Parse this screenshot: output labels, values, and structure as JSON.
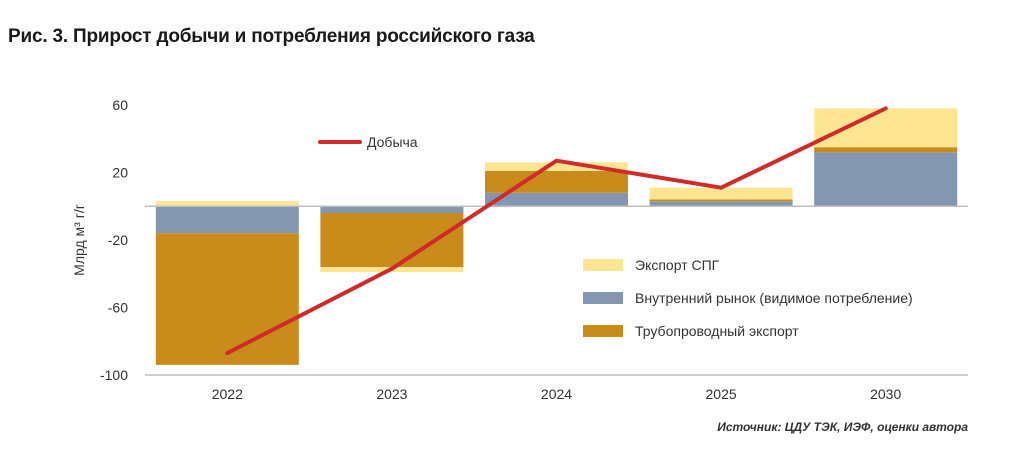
{
  "title": "Рис. 3. Прирост добычи и потребления российского газа",
  "source": "Источник: ЦДУ ТЭК, ИЭФ, оценки автора",
  "chart_data": {
    "type": "bar",
    "stacked": true,
    "categories": [
      "2022",
      "2023",
      "2024",
      "2025",
      "2030"
    ],
    "ylabel": "Млрд м³ г/г",
    "ylim": [
      -100,
      60
    ],
    "yticks": [
      60,
      20,
      -20,
      -60,
      -100
    ],
    "grid": false,
    "series": [
      {
        "name": "Внутренний рынок (видимое потребление)",
        "color": "#8497b0",
        "values": [
          -16,
          -4,
          8,
          3,
          32
        ]
      },
      {
        "name": "Трубопроводный экспорт",
        "color": "#c98c1a",
        "values": [
          -78,
          -32,
          13,
          1,
          3
        ]
      },
      {
        "name": "Экспорт СПГ",
        "color": "#fde592",
        "values": [
          3,
          -3,
          5,
          7,
          23
        ]
      }
    ],
    "line": {
      "name": "Добыча",
      "color": "#d12a2a",
      "values": [
        -87,
        -37,
        27,
        11,
        58
      ]
    },
    "legend": {
      "placement": "inside"
    }
  }
}
